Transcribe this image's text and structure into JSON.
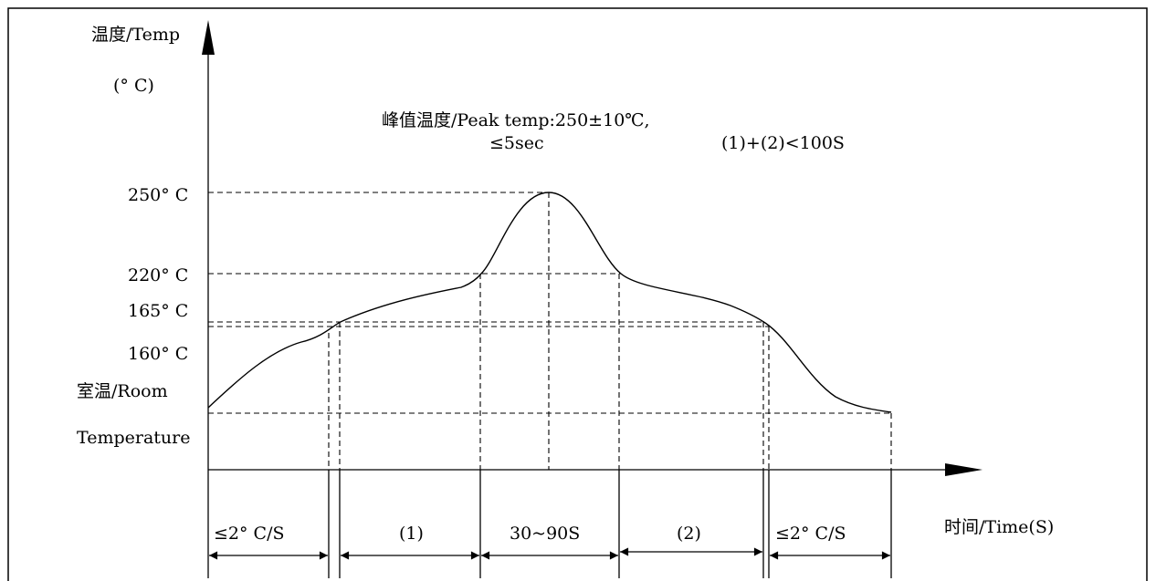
{
  "axes": {
    "y_title": "温度/Temp",
    "y_unit": "(° C)",
    "x_title": "时间/Time(S)"
  },
  "notes": {
    "peak_line1": "峰值温度/Peak temp:250±10℃,",
    "peak_line2": "≤5sec",
    "sum_condition": "(1)+(2)<100S"
  },
  "y_levels": {
    "t250": "250° C",
    "t220": "220° C",
    "t165": "165° C",
    "t160": "160° C",
    "room_1": "室温/Room",
    "room_2": "Temperature"
  },
  "segments": {
    "s1": "≤2° C/S",
    "s2": "(1)",
    "s3": "30~90S",
    "s4": "(2)",
    "s5": "≤2° C/S"
  }
}
